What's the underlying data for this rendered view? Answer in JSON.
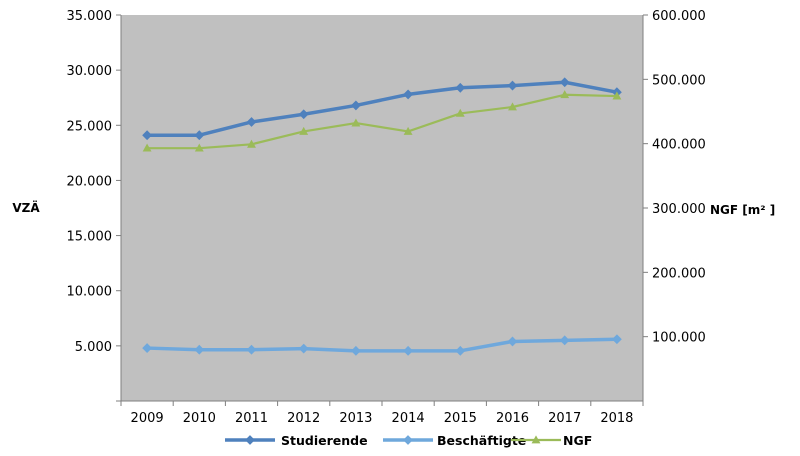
{
  "chart_data": {
    "type": "line",
    "categories": [
      "2009",
      "2010",
      "2011",
      "2012",
      "2013",
      "2014",
      "2015",
      "2016",
      "2017",
      "2018"
    ],
    "y_left": {
      "label": "VZÄ",
      "range": [
        0,
        35000
      ],
      "ticks": [
        5000,
        10000,
        15000,
        20000,
        25000,
        30000,
        35000
      ],
      "tick_labels": [
        "5.000",
        "10.000",
        "15.000",
        "20.000",
        "25.000",
        "30.000",
        "35.000"
      ]
    },
    "y_right": {
      "label": "NGF [m² ]",
      "range": [
        0,
        600000
      ],
      "ticks": [
        100000,
        200000,
        300000,
        400000,
        500000,
        600000
      ],
      "tick_labels": [
        "100.000",
        "200.000",
        "300.000",
        "400.000",
        "500.000",
        "600.000"
      ]
    },
    "series": [
      {
        "name": "Studierende",
        "axis": "left",
        "color": "#4F81BD",
        "marker": "diamond",
        "values": [
          24100,
          24100,
          25300,
          26000,
          26800,
          27800,
          28400,
          28600,
          28900,
          28000
        ]
      },
      {
        "name": "Beschäftigte",
        "axis": "left",
        "color": "#6FA8DC",
        "marker": "diamond",
        "values": [
          4800,
          4650,
          4650,
          4750,
          4550,
          4550,
          4550,
          5400,
          5500,
          5600
        ]
      },
      {
        "name": "NGF",
        "axis": "right",
        "color": "#9BBB59",
        "marker": "triangle",
        "values": [
          393000,
          393000,
          399000,
          419000,
          432000,
          419000,
          447000,
          457000,
          476000,
          474000
        ]
      }
    ],
    "plot_background": "#C0C0C0",
    "grid": false,
    "legend_position": "bottom"
  }
}
